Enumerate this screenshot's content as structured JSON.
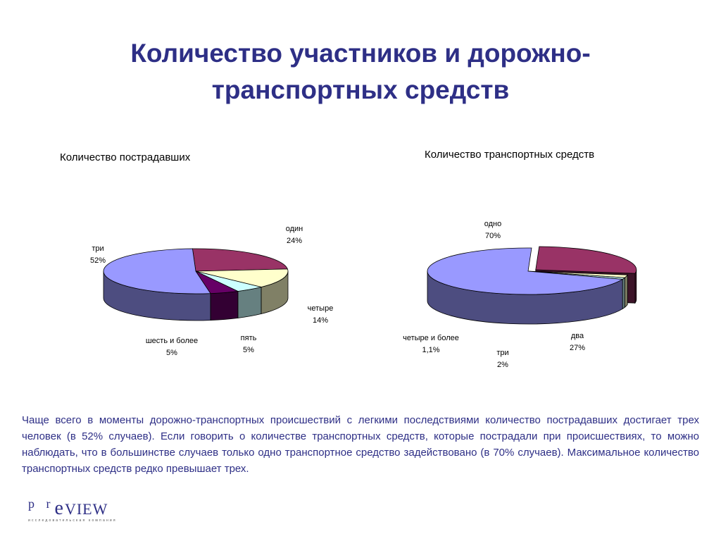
{
  "title": {
    "line1": "Количество участников и дорожно-",
    "line2": "транспортных средств"
  },
  "chart_data": [
    {
      "type": "pie",
      "title": "Количество пострадавших",
      "slices": [
        {
          "name": "один",
          "value": 24,
          "label": "24%",
          "color": "#993366"
        },
        {
          "name": "четыре",
          "value": 14,
          "label": "14%",
          "color": "#ffffcc"
        },
        {
          "name": "пять",
          "value": 5,
          "label": "5%",
          "color": "#ccffff"
        },
        {
          "name": "шесть и более",
          "value": 5,
          "label": "5%",
          "color": "#660066"
        },
        {
          "name": "три",
          "value": 52,
          "label": "52%",
          "color": "#9999ff"
        }
      ]
    },
    {
      "type": "pie",
      "title": "Количество транспортных средств",
      "slices": [
        {
          "name": "два",
          "value": 27,
          "label": "27%",
          "color": "#993366"
        },
        {
          "name": "три",
          "value": 2,
          "label": "2%",
          "color": "#ffffcc"
        },
        {
          "name": "четыре и более",
          "value": 1.1,
          "label": "1,1%",
          "color": "#ccffff"
        },
        {
          "name": "одно",
          "value": 70,
          "label": "70%",
          "color": "#9999ff"
        }
      ]
    }
  ],
  "paragraph": "Чаще всего в моменты дорожно-транспортных происшествий с легкими последствиями количество пострадавших достигает трех человек (в 52% случаев). Если говорить о количестве транспортных средств, которые пострадали при происшествиях, то можно наблюдать, что в большинстве случаев  только одно транспортное средство задействовано (в 70% случаев). Максимальное количество транспортных средств редко превышает трех.",
  "logo": {
    "pr": "p r",
    "e": "e",
    "view": "VIEW",
    "tagline": "исследовательская компания"
  }
}
